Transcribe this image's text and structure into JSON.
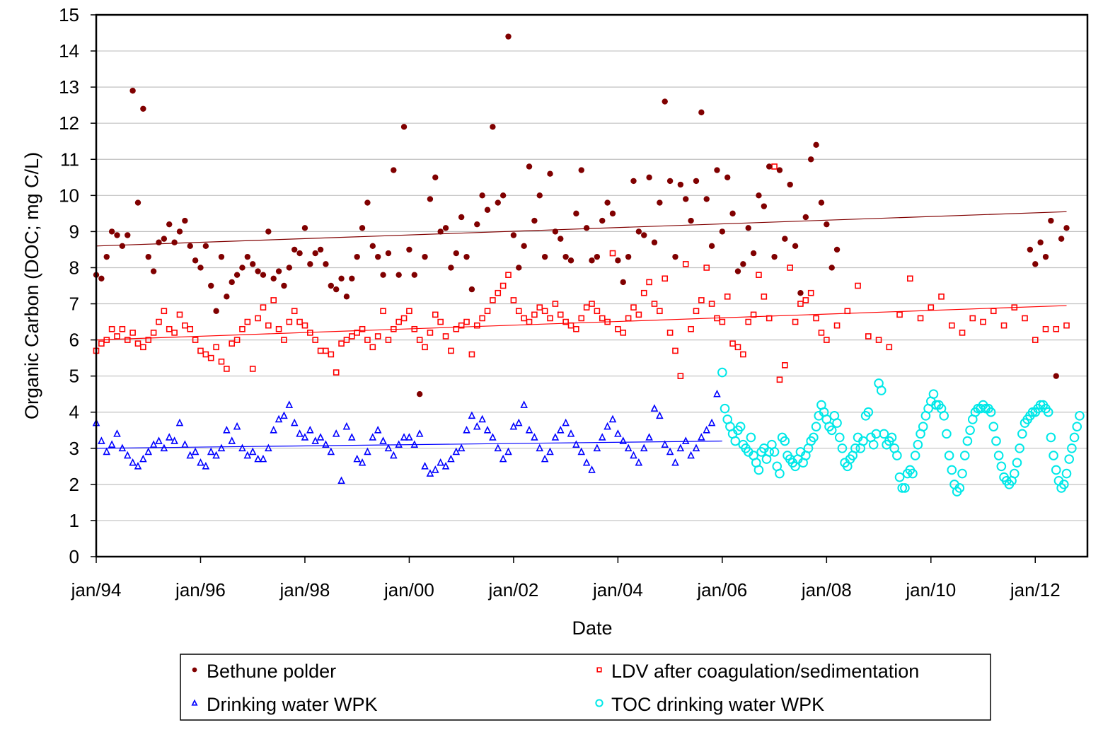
{
  "chart_data": {
    "type": "scatter",
    "title": "",
    "xlabel": "Date",
    "ylabel": "Organic Carbon (DOC; mg C/L)",
    "xlim": [
      1994.0,
      2013.0
    ],
    "ylim": [
      0,
      15
    ],
    "grid": "horizontal",
    "legend_placement": "bottom",
    "y_ticks": [
      0,
      1,
      2,
      3,
      4,
      5,
      6,
      7,
      8,
      9,
      10,
      11,
      12,
      13,
      14,
      15
    ],
    "x_ticks": [
      {
        "value": 1994,
        "label": "jan/94"
      },
      {
        "value": 1996,
        "label": "jan/96"
      },
      {
        "value": 1998,
        "label": "jan/98"
      },
      {
        "value": 2000,
        "label": "jan/00"
      },
      {
        "value": 2002,
        "label": "jan/02"
      },
      {
        "value": 2004,
        "label": "jan/04"
      },
      {
        "value": 2006,
        "label": "jan/06"
      },
      {
        "value": 2008,
        "label": "jan/08"
      },
      {
        "value": 2010,
        "label": "jan/10"
      },
      {
        "value": 2012,
        "label": "jan/12"
      }
    ],
    "series": [
      {
        "name": "Bethune polder",
        "marker": "filled-circle",
        "color": "#800000",
        "trendline": [
          [
            1994.0,
            8.6
          ],
          [
            2012.6,
            9.55
          ]
        ],
        "segments": [
          {
            "x_start": 1994.0,
            "x_step": 0.1,
            "values": [
              7.8,
              7.7,
              8.3,
              9.0,
              8.9,
              8.6,
              8.9,
              12.9,
              9.8,
              12.4,
              8.3,
              7.9,
              8.7,
              8.8,
              9.2,
              8.7,
              9.0,
              9.3,
              8.6,
              8.2,
              8.0,
              8.6,
              7.5,
              6.8,
              8.3,
              7.2,
              7.6,
              7.8,
              8.0,
              8.3,
              8.1,
              7.9,
              7.8,
              9.0,
              7.7,
              7.9,
              7.5,
              8.0,
              8.5,
              8.4,
              9.1,
              8.1,
              8.4,
              8.5,
              8.1,
              7.5,
              7.4,
              7.7,
              7.2,
              7.7,
              8.3,
              9.1,
              9.8,
              8.6,
              8.3,
              7.8,
              8.4,
              10.7,
              7.8,
              11.9,
              8.5,
              7.8,
              4.5,
              8.3,
              9.9,
              10.5,
              9.0,
              9.1,
              8.0,
              8.4,
              9.4,
              8.3,
              7.4,
              9.2,
              10.0,
              9.6,
              11.9,
              9.8,
              10.0,
              14.4,
              8.9,
              8.0,
              8.6,
              10.8,
              9.3,
              10.0,
              8.3,
              10.6,
              9.0,
              8.8,
              8.3,
              8.2,
              9.5,
              10.7,
              9.1,
              8.2,
              8.3,
              9.3,
              9.8,
              9.5,
              8.2,
              7.6,
              8.3,
              10.4,
              9.0,
              8.9,
              10.5,
              8.7,
              9.8,
              12.6,
              10.4,
              8.3,
              10.3,
              9.9,
              9.3,
              10.4,
              12.3,
              9.9,
              8.6,
              10.7,
              9.0,
              10.5,
              9.5,
              7.9,
              8.1,
              9.1,
              8.4,
              10.0,
              9.7,
              10.8,
              8.3,
              10.7,
              8.8,
              10.3,
              8.6,
              7.3,
              9.4,
              11.0,
              11.4,
              9.8,
              9.2,
              8.0,
              8.5
            ]
          },
          {
            "x_start": 2011.9,
            "x_step": 0.1,
            "values": [
              8.5,
              8.1,
              8.7,
              8.3,
              9.3,
              5.0,
              8.8,
              9.1
            ]
          }
        ]
      },
      {
        "name": "LDV after coagulation/sedimentation",
        "marker": "open-square",
        "color": "#ff0000",
        "trendline": [
          [
            1994.0,
            6.0
          ],
          [
            2012.6,
            6.95
          ]
        ],
        "segments": [
          {
            "x_start": 1994.0,
            "x_step": 0.1,
            "values": [
              5.7,
              5.9,
              6.0,
              6.3,
              6.1,
              6.3,
              6.0,
              6.2,
              5.9,
              5.8,
              6.0,
              6.2,
              6.5,
              6.8,
              6.3,
              6.2,
              6.7,
              6.4,
              6.3,
              6.0,
              5.7,
              5.6,
              5.5,
              5.8,
              5.4,
              5.2,
              5.9,
              6.0,
              6.3,
              6.5,
              5.2,
              6.6,
              6.9,
              6.4,
              7.1,
              6.3,
              6.0,
              6.5,
              6.8,
              6.5,
              6.4,
              6.2,
              6.0,
              5.7,
              5.7,
              5.6,
              5.1,
              5.9,
              6.0,
              6.1,
              6.2,
              6.3,
              6.0,
              5.8,
              6.1,
              6.8,
              6.0,
              6.3,
              6.5,
              6.6,
              6.8,
              6.3,
              6.0,
              5.8,
              6.2,
              6.7,
              6.5,
              6.1,
              5.7,
              6.3,
              6.4,
              6.5,
              5.6,
              6.4,
              6.6,
              6.8,
              7.1,
              7.3,
              7.5,
              7.8,
              7.1,
              6.8,
              6.6,
              6.5,
              6.7,
              6.9,
              6.8,
              6.6,
              7.0,
              6.7,
              6.5,
              6.4,
              6.3,
              6.6,
              6.9,
              7.0,
              6.8,
              6.6,
              6.5,
              8.4,
              6.3,
              6.2,
              6.6,
              6.9,
              6.7,
              7.3,
              7.6,
              7.0,
              6.8,
              7.7,
              6.2,
              5.7,
              5.0,
              8.1,
              6.3,
              6.8,
              7.1,
              8.0,
              7.0,
              6.6,
              6.5,
              7.2,
              5.9,
              5.8,
              5.6,
              6.5,
              6.7,
              7.8,
              7.2,
              6.6,
              10.8,
              4.9,
              5.3,
              8.0,
              6.5,
              7.0,
              7.1,
              7.3,
              6.6,
              6.2
            ]
          },
          {
            "x_start": 2008.0,
            "x_step": 0.2,
            "values": [
              6.0,
              6.4,
              6.8,
              7.5,
              6.1,
              6.0,
              5.8,
              6.7,
              7.7,
              6.6,
              6.9,
              7.2,
              6.4,
              6.2,
              6.6,
              6.5,
              6.8,
              6.4,
              6.9,
              6.6,
              6.0,
              6.3,
              6.3,
              6.4
            ]
          }
        ]
      },
      {
        "name": "Drinking water WPK",
        "marker": "open-triangle",
        "color": "#0000ff",
        "trendline": [
          [
            1994.0,
            3.0
          ],
          [
            2006.0,
            3.2
          ]
        ],
        "segments": [
          {
            "x_start": 1994.0,
            "x_step": 0.1,
            "values": [
              3.7,
              3.2,
              2.9,
              3.1,
              3.4,
              3.0,
              2.8,
              2.6,
              2.5,
              2.7,
              2.9,
              3.1,
              3.2,
              3.0,
              3.3,
              3.2,
              3.7,
              3.1,
              2.8,
              2.9,
              2.6,
              2.5,
              2.9,
              2.8,
              3.0,
              3.5,
              3.2,
              3.6,
              3.0,
              2.8,
              2.9,
              2.7,
              2.7,
              3.0,
              3.5,
              3.8,
              3.9,
              4.2,
              3.7,
              3.4,
              3.3,
              3.5,
              3.2,
              3.3,
              3.1,
              2.9,
              3.4,
              2.1,
              3.6,
              3.3,
              2.7,
              2.6,
              2.9,
              3.3,
              3.5,
              3.2,
              3.0,
              2.8,
              3.1,
              3.3,
              3.3,
              3.1,
              3.4,
              2.5,
              2.3,
              2.4,
              2.6,
              2.5,
              2.7,
              2.9,
              3.0,
              3.5,
              3.9,
              3.6,
              3.8,
              3.5,
              3.3,
              3.0,
              2.7,
              2.9,
              3.6,
              3.7,
              4.2,
              3.5,
              3.3,
              3.0,
              2.7,
              2.9,
              3.3,
              3.5,
              3.7,
              3.4,
              3.1,
              2.9,
              2.6,
              2.4,
              3.0,
              3.3,
              3.6,
              3.8,
              3.4,
              3.2,
              3.0,
              2.8,
              2.6,
              3.0,
              3.3,
              4.1,
              3.9,
              3.1,
              2.9,
              2.6,
              3.0,
              3.2,
              2.8,
              3.0,
              3.3,
              3.5,
              3.7,
              4.5
            ]
          }
        ]
      },
      {
        "name": "TOC drinking water WPK",
        "marker": "open-circle",
        "color": "#00e8e8",
        "segments": [
          {
            "x_start": 2006.0,
            "x_step": 0.05,
            "values": [
              5.1,
              4.1,
              3.8,
              3.6,
              3.4,
              3.2,
              3.5,
              3.6,
              3.1,
              3.0,
              2.9,
              3.3,
              2.8,
              2.6,
              2.4,
              2.9,
              3.0,
              2.7,
              2.9,
              3.1,
              2.9,
              2.5,
              2.3,
              3.3,
              3.2,
              2.8,
              2.7,
              2.6,
              2.5,
              2.7,
              2.9,
              2.6,
              2.8,
              3.0,
              3.2,
              3.3,
              3.6,
              3.9,
              4.2,
              4.0,
              3.8,
              3.6,
              3.5,
              3.9,
              3.7,
              3.3,
              3.0,
              2.6,
              2.5,
              2.7,
              2.8,
              3.0,
              3.3,
              3.0,
              3.2,
              3.9,
              4.0,
              3.3,
              3.1,
              3.4,
              4.8,
              4.6,
              3.4,
              3.1,
              3.2,
              3.3,
              3.0,
              2.8,
              2.2,
              1.9,
              1.9,
              2.3,
              2.4,
              2.3,
              2.8,
              3.1,
              3.4,
              3.6,
              3.9,
              4.1,
              4.3,
              4.5,
              4.2,
              4.2,
              4.1,
              3.9,
              3.4,
              2.8,
              2.4,
              2.0,
              1.8,
              1.9,
              2.3,
              2.8,
              3.2,
              3.5,
              3.8,
              4.0,
              4.1,
              4.1,
              4.2,
              4.1,
              4.1,
              4.0,
              3.6,
              3.2,
              2.8,
              2.5,
              2.2,
              2.1,
              2.0,
              2.1,
              2.3,
              2.6,
              3.0,
              3.4,
              3.7,
              3.8,
              3.9,
              4.0,
              4.0,
              4.1,
              4.2,
              4.2,
              4.1,
              4.0,
              3.3,
              2.8,
              2.4,
              2.1,
              1.9,
              2.0,
              2.3,
              2.7,
              3.0,
              3.3,
              3.6,
              3.9
            ]
          }
        ]
      }
    ]
  }
}
